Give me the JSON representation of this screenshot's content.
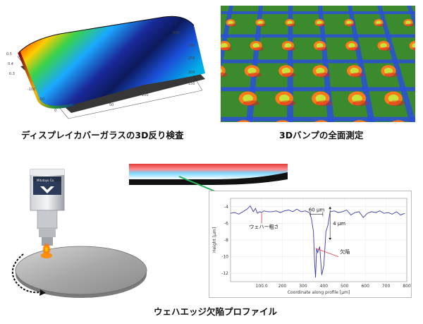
{
  "captions": {
    "top_left": "ディスプレイカバーガラスの3D反り検査",
    "top_right": "3Dバンプの全面測定",
    "bottom": "ウェハエッジ欠陥プロファイル"
  },
  "sensor": {
    "brand": "Mitutoyo Co."
  },
  "chart_data": {
    "type": "line",
    "xlabel": "Coordinate along profile [µm]",
    "ylabel": "Height [µm]",
    "xlim": [
      0,
      850
    ],
    "ylim": [
      -13,
      -3
    ],
    "x_ticks": [
      "100.0",
      "200",
      "300",
      "400",
      "500",
      "600",
      "700",
      "800"
    ],
    "y_ticks": [
      "-4",
      "-6",
      "-8",
      "-10",
      "-12"
    ],
    "annotations": {
      "roughness": "ウェハー粗さ",
      "defect": "欠陥",
      "width": "60 µm",
      "depth": "4 µm"
    },
    "series": [
      {
        "x": [
          0,
          20,
          40,
          60,
          80,
          95,
          110,
          120,
          130,
          140,
          150,
          160,
          180,
          200,
          220,
          240,
          260,
          280,
          300,
          320,
          340,
          360,
          370,
          380,
          390,
          400,
          405,
          410,
          415,
          420,
          430,
          440,
          450,
          460,
          470,
          480,
          500,
          520,
          540,
          560,
          580,
          600,
          620,
          640,
          660,
          680,
          700,
          720,
          740,
          760,
          780,
          800,
          820,
          840
        ],
        "y": [
          -4.8,
          -4.7,
          -4.9,
          -4.6,
          -4.3,
          -3.9,
          -4.6,
          -4.2,
          -4.8,
          -4.6,
          -4.7,
          -4.5,
          -4.6,
          -4.6,
          -4.5,
          -4.7,
          -4.5,
          -4.4,
          -4.6,
          -4.3,
          -4.6,
          -4.5,
          -4.6,
          -4.7,
          -5.4,
          -7.0,
          -10.5,
          -12.5,
          -9.0,
          -9.5,
          -8.8,
          -12.2,
          -11.0,
          -7.0,
          -6.2,
          -4.6,
          -4.5,
          -4.7,
          -4.6,
          -4.4,
          -5.0,
          -4.7,
          -4.6,
          -5.3,
          -4.8,
          -4.6,
          -4.7,
          -4.5,
          -4.8,
          -4.7,
          -4.9,
          -4.6,
          -5.0,
          -4.8
        ]
      }
    ]
  }
}
